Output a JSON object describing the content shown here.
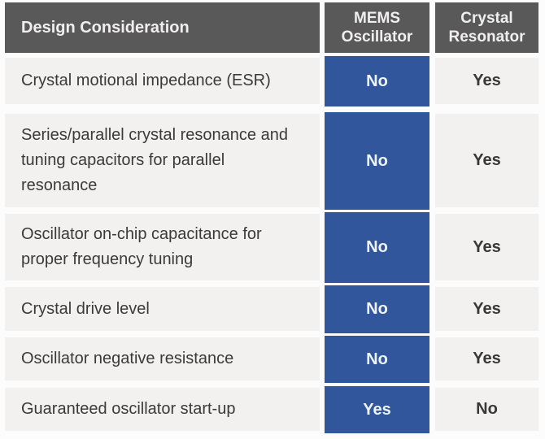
{
  "table": {
    "header": {
      "design_consideration": "Design Consideration",
      "mems": "MEMS\nOscillator",
      "crystal": "Crystal\nResonator"
    },
    "rows": [
      {
        "consideration": "Crystal motional impedance (ESR)",
        "mems": "No",
        "crystal": "Yes"
      },
      {
        "consideration": "Series/parallel crystal resonance and tuning capacitors for parallel resonance",
        "mems": "No",
        "crystal": "Yes"
      },
      {
        "consideration": "Oscillator on-chip capacitance for proper frequency tuning",
        "mems": "No",
        "crystal": "Yes"
      },
      {
        "consideration": "Crystal drive level",
        "mems": "No",
        "crystal": "Yes"
      },
      {
        "consideration": "Oscillator negative resistance",
        "mems": "No",
        "crystal": "Yes"
      },
      {
        "consideration": "Guaranteed oscillator start-up",
        "mems": "Yes",
        "crystal": "No"
      }
    ],
    "colors": {
      "header_bg": "#595959",
      "header_text": "#f0efee",
      "row_bg": "#f2f1ef",
      "body_text": "#3b3a39",
      "accent_blue": "#31569b",
      "accent_text": "#eff3fa"
    }
  }
}
